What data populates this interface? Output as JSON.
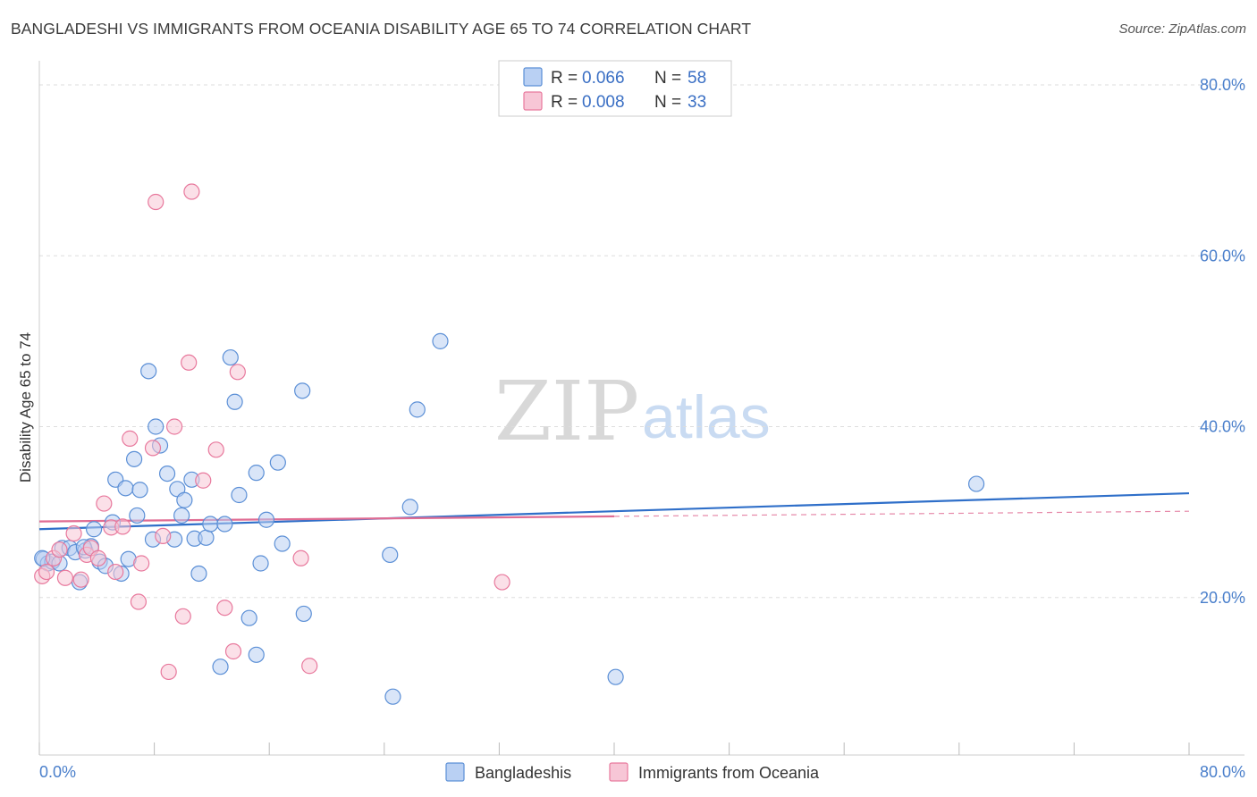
{
  "header": {
    "title": "BANGLADESHI VS IMMIGRANTS FROM OCEANIA DISABILITY AGE 65 TO 74 CORRELATION CHART",
    "source": "Source: ZipAtlas.com"
  },
  "watermark": {
    "zip": "ZIP",
    "atlas": "atlas"
  },
  "colors": {
    "blue": "#5b8fd6",
    "blue_fill": "#b9d0f3",
    "pink": "#e8799d",
    "pink_fill": "#f7c6d6",
    "blue_line": "#2f6fc9",
    "pink_line": "#e06c93",
    "axis_label": "#4a7fcb",
    "grid": "#dddddd"
  },
  "legend_box": {
    "rows": [
      {
        "r_label": "R =",
        "r_value": "0.066",
        "n_label": "N =",
        "n_value": "58"
      },
      {
        "r_label": "R =",
        "r_value": "0.008",
        "n_label": "N =",
        "n_value": "33"
      }
    ]
  },
  "chart_data": {
    "type": "scatter",
    "title": "BANGLADESHI VS IMMIGRANTS FROM OCEANIA DISABILITY AGE 65 TO 74 CORRELATION CHART",
    "xlabel": "",
    "ylabel": "Disability Age 65 to 74",
    "xlim": [
      0,
      80
    ],
    "ylim": [
      0,
      80
    ],
    "x_tick_labels": [
      "0.0%",
      "80.0%"
    ],
    "y_ticks": [
      20,
      40,
      60,
      80
    ],
    "y_tick_labels": [
      "20.0%",
      "40.0%",
      "60.0%",
      "80.0%"
    ],
    "legend_placement": "top-center",
    "grid": true,
    "series": [
      {
        "name": "Bangladeshis",
        "color": "blue",
        "r": 0.066,
        "n": 58,
        "trend": {
          "x": [
            0,
            80
          ],
          "y": [
            28.0,
            32.2
          ],
          "dashed_from": null
        },
        "points": [
          [
            0.3,
            24.5
          ],
          [
            0.6,
            24.0
          ],
          [
            0.9,
            24.2
          ],
          [
            1.4,
            24.0
          ],
          [
            1.6,
            25.8
          ],
          [
            2.1,
            25.8
          ],
          [
            2.5,
            25.3
          ],
          [
            2.8,
            21.8
          ],
          [
            3.2,
            25.5
          ],
          [
            3.6,
            26.0
          ],
          [
            3.8,
            28.0
          ],
          [
            4.2,
            24.2
          ],
          [
            4.6,
            23.7
          ],
          [
            5.1,
            28.8
          ],
          [
            5.3,
            33.8
          ],
          [
            5.7,
            22.8
          ],
          [
            6.0,
            32.8
          ],
          [
            6.2,
            24.5
          ],
          [
            6.6,
            36.2
          ],
          [
            6.8,
            29.6
          ],
          [
            7.0,
            32.6
          ],
          [
            7.6,
            46.5
          ],
          [
            7.9,
            26.8
          ],
          [
            8.1,
            40.0
          ],
          [
            8.4,
            37.8
          ],
          [
            8.9,
            34.5
          ],
          [
            9.4,
            26.8
          ],
          [
            9.6,
            32.7
          ],
          [
            9.9,
            29.6
          ],
          [
            10.1,
            31.4
          ],
          [
            10.6,
            33.8
          ],
          [
            10.8,
            26.9
          ],
          [
            11.1,
            22.8
          ],
          [
            11.6,
            27.0
          ],
          [
            11.9,
            28.6
          ],
          [
            12.6,
            11.9
          ],
          [
            12.9,
            28.6
          ],
          [
            13.3,
            48.1
          ],
          [
            13.6,
            42.9
          ],
          [
            13.9,
            32.0
          ],
          [
            14.6,
            17.6
          ],
          [
            15.1,
            13.3
          ],
          [
            15.1,
            34.6
          ],
          [
            15.4,
            24.0
          ],
          [
            15.8,
            29.1
          ],
          [
            16.6,
            35.8
          ],
          [
            16.9,
            26.3
          ],
          [
            18.3,
            44.2
          ],
          [
            18.4,
            18.1
          ],
          [
            24.4,
            25.0
          ],
          [
            24.6,
            8.4
          ],
          [
            25.8,
            30.6
          ],
          [
            26.3,
            42.0
          ],
          [
            27.9,
            50.0
          ],
          [
            40.1,
            10.7
          ],
          [
            65.2,
            33.3
          ],
          [
            0.2,
            24.6
          ],
          [
            3.1,
            25.9
          ]
        ]
      },
      {
        "name": "Immigrants from Oceania",
        "color": "pink",
        "r": 0.008,
        "n": 33,
        "trend": {
          "x": [
            0,
            80
          ],
          "y": [
            28.9,
            30.1
          ],
          "dashed_from": 40
        },
        "points": [
          [
            0.2,
            22.5
          ],
          [
            0.5,
            23.0
          ],
          [
            1.0,
            24.6
          ],
          [
            1.4,
            25.6
          ],
          [
            1.8,
            22.3
          ],
          [
            2.4,
            27.5
          ],
          [
            2.9,
            22.1
          ],
          [
            3.3,
            25.0
          ],
          [
            3.6,
            25.8
          ],
          [
            4.1,
            24.6
          ],
          [
            4.5,
            31.0
          ],
          [
            5.0,
            28.2
          ],
          [
            5.3,
            23.0
          ],
          [
            5.8,
            28.3
          ],
          [
            6.3,
            38.6
          ],
          [
            6.9,
            19.5
          ],
          [
            7.1,
            24.0
          ],
          [
            7.9,
            37.5
          ],
          [
            8.1,
            66.3
          ],
          [
            8.6,
            27.2
          ],
          [
            9.0,
            11.3
          ],
          [
            9.4,
            40.0
          ],
          [
            10.0,
            17.8
          ],
          [
            10.4,
            47.5
          ],
          [
            10.6,
            67.5
          ],
          [
            11.4,
            33.7
          ],
          [
            12.3,
            37.3
          ],
          [
            12.9,
            18.8
          ],
          [
            13.5,
            13.7
          ],
          [
            13.8,
            46.4
          ],
          [
            18.2,
            24.6
          ],
          [
            18.8,
            12.0
          ],
          [
            32.2,
            21.8
          ]
        ]
      }
    ]
  }
}
